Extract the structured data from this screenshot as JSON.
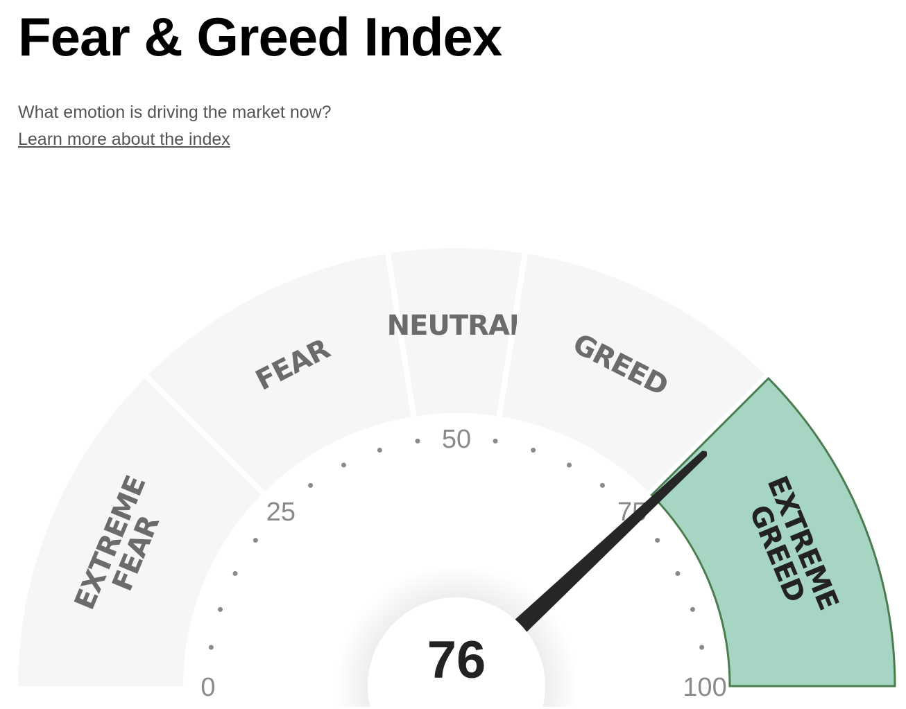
{
  "header": {
    "title": "Fear & Greed Index",
    "subtitle": "What emotion is driving the market now?",
    "learn_more_link": "Learn more about the index"
  },
  "gauge": {
    "value": 76,
    "value_label": "76",
    "min": 0,
    "max": 100,
    "active_segment": 4,
    "tick_labels": [
      "0",
      "25",
      "50",
      "75",
      "100"
    ],
    "segments": [
      {
        "lines": [
          "EXTREME",
          "FEAR"
        ],
        "from": 0,
        "to": 25
      },
      {
        "lines": [
          "FEAR"
        ],
        "from": 25,
        "to": 45
      },
      {
        "lines": [
          "NEUTRAL"
        ],
        "from": 45,
        "to": 55
      },
      {
        "lines": [
          "GREED"
        ],
        "from": 55,
        "to": 75
      },
      {
        "lines": [
          "EXTREME",
          "GREED"
        ],
        "from": 75,
        "to": 100
      }
    ],
    "colors": {
      "inactive_fill": "#f6f6f6",
      "inactive_text": "#6b6b6b",
      "active_fill": "#a7d5c3",
      "active_stroke": "#4a7c50",
      "active_text": "#222222",
      "needle": "#262626",
      "ticks": "#8a8a8a"
    }
  }
}
